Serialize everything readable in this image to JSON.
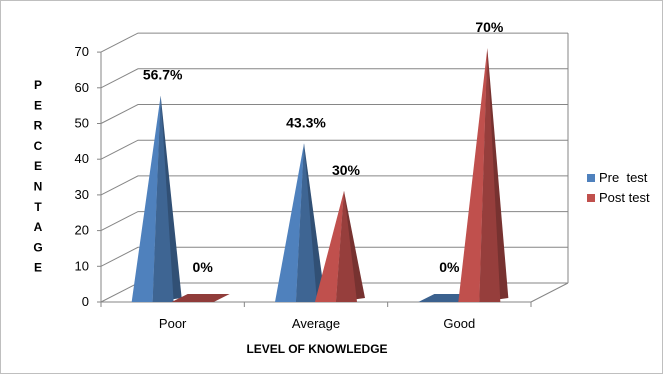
{
  "chart_data": {
    "type": "bar",
    "variant": "3d-pyramid",
    "categories": [
      "Poor",
      "Average",
      "Good"
    ],
    "series": [
      {
        "name": "Pre  test",
        "values": [
          56.7,
          43.3,
          0
        ],
        "labels": [
          "56.7%",
          "43.3%",
          "0%"
        ],
        "color": "#4f81bd"
      },
      {
        "name": "Post test",
        "values": [
          0,
          30,
          70
        ],
        "labels": [
          "0%",
          "30%",
          "70%"
        ],
        "color": "#c0504d"
      }
    ],
    "xlabel": "LEVEL OF KNOWLEDGE",
    "ylabel": "PERCENTAGE",
    "ylim": [
      0,
      70
    ],
    "yticks": [
      "0",
      "10",
      "20",
      "30",
      "40",
      "50",
      "60",
      "70"
    ],
    "grid": true,
    "legend": "right"
  }
}
